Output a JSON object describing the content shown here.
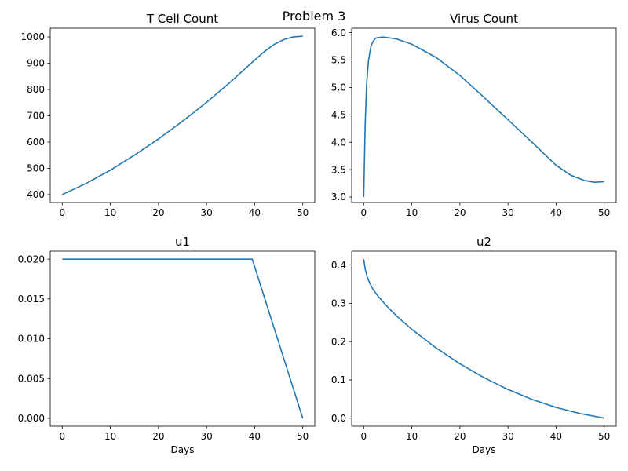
{
  "figure": {
    "suptitle": "Problem 3"
  },
  "chart_data": [
    {
      "type": "line",
      "title": "T Cell Count",
      "xlabel": "",
      "ylabel": "",
      "xlim": [
        -2.5,
        52.5
      ],
      "ylim": [
        370,
        1033
      ],
      "xticks": [
        0,
        10,
        20,
        30,
        40,
        50
      ],
      "yticks": [
        400,
        500,
        600,
        700,
        800,
        900,
        1000
      ],
      "ytick_labels": [
        "400",
        "500",
        "600",
        "700",
        "800",
        "900",
        "1000"
      ],
      "color": "#1f77b4",
      "series": [
        {
          "x": [
            0,
            5,
            10,
            15,
            20,
            25,
            30,
            35,
            38,
            40,
            42,
            44,
            46,
            48,
            50
          ],
          "y": [
            400,
            443,
            493,
            550,
            612,
            679,
            751,
            829,
            879,
            912,
            944,
            971,
            990,
            1000,
            1003
          ]
        }
      ]
    },
    {
      "type": "line",
      "title": "Virus Count",
      "xlabel": "",
      "ylabel": "",
      "xlim": [
        -2.5,
        52.5
      ],
      "ylim": [
        2.9,
        6.08
      ],
      "xticks": [
        0,
        10,
        20,
        30,
        40,
        50
      ],
      "yticks": [
        3.0,
        3.5,
        4.0,
        4.5,
        5.0,
        5.5,
        6.0
      ],
      "ytick_labels": [
        "3.0",
        "3.5",
        "4.0",
        "4.5",
        "5.0",
        "5.5",
        "6.0"
      ],
      "color": "#1f77b4",
      "series": [
        {
          "x": [
            0,
            0.3,
            0.6,
            1,
            1.5,
            2,
            2.5,
            3,
            4,
            5,
            7,
            10,
            15,
            20,
            25,
            30,
            35,
            40,
            43,
            46,
            48,
            50
          ],
          "y": [
            3.0,
            4.3,
            5.05,
            5.5,
            5.75,
            5.85,
            5.9,
            5.91,
            5.92,
            5.91,
            5.88,
            5.79,
            5.55,
            5.22,
            4.82,
            4.41,
            4.0,
            3.58,
            3.4,
            3.3,
            3.27,
            3.28
          ]
        }
      ]
    },
    {
      "type": "line",
      "title": "u1",
      "xlabel": "Days",
      "ylabel": "",
      "xlim": [
        -2.5,
        52.5
      ],
      "ylim": [
        -0.001,
        0.021
      ],
      "xticks": [
        0,
        10,
        20,
        30,
        40,
        50
      ],
      "yticks": [
        0.0,
        0.005,
        0.01,
        0.015,
        0.02
      ],
      "ytick_labels": [
        "0.000",
        "0.005",
        "0.010",
        "0.015",
        "0.020"
      ],
      "color": "#1f77b4",
      "series": [
        {
          "x": [
            0,
            39.5,
            50
          ],
          "y": [
            0.02,
            0.02,
            0.0
          ]
        }
      ]
    },
    {
      "type": "line",
      "title": "u2",
      "xlabel": "Days",
      "ylabel": "",
      "xlim": [
        -2.5,
        52.5
      ],
      "ylim": [
        -0.021,
        0.436
      ],
      "xticks": [
        0,
        10,
        20,
        30,
        40,
        50
      ],
      "yticks": [
        0.0,
        0.1,
        0.2,
        0.3,
        0.4
      ],
      "ytick_labels": [
        "0.0",
        "0.1",
        "0.2",
        "0.3",
        "0.4"
      ],
      "color": "#1f77b4",
      "series": [
        {
          "x": [
            0,
            0.3,
            0.7,
            1,
            1.5,
            2,
            3,
            5,
            7,
            10,
            15,
            20,
            25,
            30,
            35,
            40,
            45,
            50
          ],
          "y": [
            0.415,
            0.39,
            0.37,
            0.36,
            0.347,
            0.335,
            0.318,
            0.29,
            0.265,
            0.232,
            0.184,
            0.142,
            0.106,
            0.075,
            0.049,
            0.028,
            0.012,
            0.0
          ]
        }
      ]
    }
  ]
}
